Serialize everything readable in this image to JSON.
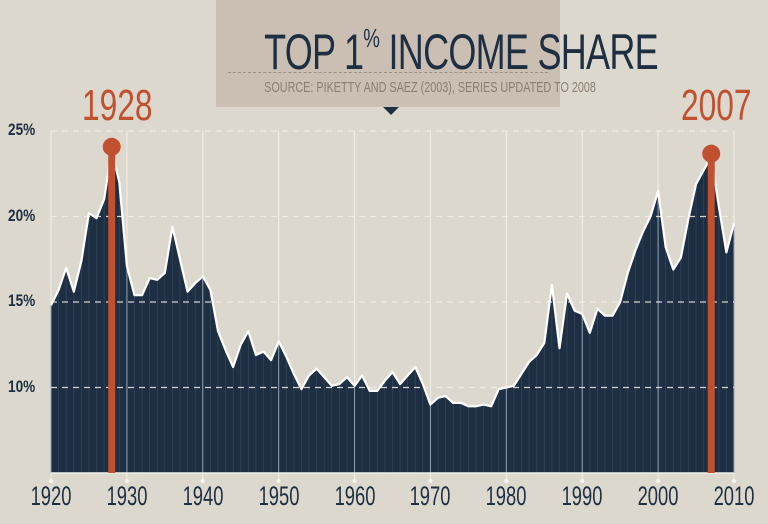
{
  "header": {
    "title_main": "TOP 1",
    "title_sup": "%",
    "title_rest": " INCOME SHARE",
    "source": "SOURCE: PIKETTY AND SAEZ (2003), SERIES UPDATED TO 2008"
  },
  "highlights": [
    {
      "label": "1928",
      "year": 1928,
      "value": 23.9
    },
    {
      "label": "2007",
      "year": 2007,
      "value": 23.5
    }
  ],
  "y_ticks": [
    "25%",
    "20%",
    "15%",
    "10%"
  ],
  "x_ticks": [
    "1920",
    "1930",
    "1940",
    "1950",
    "1960",
    "1970",
    "1980",
    "1990",
    "2000",
    "2010"
  ],
  "colors": {
    "background": "#dcd8cd",
    "title_box": "#cbbfb3",
    "area_fill": "#1e2f43",
    "line": "#ffffff",
    "highlight": "#c0502e",
    "text": "#1e2f43"
  },
  "chart_data": {
    "type": "area",
    "title": "TOP 1% INCOME SHARE",
    "subtitle": "SOURCE: PIKETTY AND SAEZ (2003), SERIES UPDATED TO 2008",
    "xlabel": "",
    "ylabel": "",
    "xlim": [
      1920,
      2010
    ],
    "ylim": [
      5,
      25
    ],
    "y_ticks": [
      10,
      15,
      20,
      25
    ],
    "x_ticks": [
      1920,
      1930,
      1940,
      1950,
      1960,
      1970,
      1980,
      1990,
      2000,
      2010
    ],
    "grid": "dashed horizontal at 10/15/20/25, vertical lines at decades",
    "annotations": [
      {
        "year": 1928,
        "text": "1928",
        "value": 23.9
      },
      {
        "year": 2007,
        "text": "2007",
        "value": 23.5
      }
    ],
    "series": [
      {
        "name": "Top 1% income share (%)",
        "x": [
          1920,
          1921,
          1922,
          1923,
          1924,
          1925,
          1926,
          1927,
          1928,
          1929,
          1930,
          1931,
          1932,
          1933,
          1934,
          1935,
          1936,
          1937,
          1938,
          1939,
          1940,
          1941,
          1942,
          1943,
          1944,
          1945,
          1946,
          1947,
          1948,
          1949,
          1950,
          1951,
          1952,
          1953,
          1954,
          1955,
          1956,
          1957,
          1958,
          1959,
          1960,
          1961,
          1962,
          1963,
          1964,
          1965,
          1966,
          1967,
          1968,
          1969,
          1970,
          1971,
          1972,
          1973,
          1974,
          1975,
          1976,
          1977,
          1978,
          1979,
          1980,
          1981,
          1982,
          1983,
          1984,
          1985,
          1986,
          1987,
          1988,
          1989,
          1990,
          1991,
          1992,
          1993,
          1994,
          1995,
          1996,
          1997,
          1998,
          1999,
          2000,
          2001,
          2002,
          2003,
          2004,
          2005,
          2006,
          2007,
          2008,
          2009,
          2010
        ],
        "values": [
          14.8,
          15.7,
          17.0,
          15.6,
          17.4,
          20.2,
          19.9,
          21.0,
          23.9,
          22.0,
          17.1,
          15.4,
          15.4,
          16.4,
          16.3,
          16.7,
          19.4,
          17.5,
          15.6,
          16.1,
          16.5,
          15.7,
          13.3,
          12.2,
          11.2,
          12.5,
          13.3,
          11.9,
          12.1,
          11.6,
          12.7,
          11.8,
          10.8,
          9.9,
          10.7,
          11.1,
          10.6,
          10.1,
          10.2,
          10.6,
          10.1,
          10.7,
          9.8,
          9.8,
          10.4,
          10.9,
          10.2,
          10.7,
          11.2,
          10.2,
          9.0,
          9.4,
          9.5,
          9.1,
          9.1,
          8.9,
          8.9,
          9.0,
          8.9,
          9.9,
          10.0,
          10.1,
          10.8,
          11.5,
          11.9,
          12.6,
          16.0,
          12.3,
          15.5,
          14.5,
          14.3,
          13.2,
          14.6,
          14.2,
          14.2,
          15.0,
          16.7,
          18.0,
          19.1,
          20.0,
          21.5,
          18.2,
          16.9,
          17.6,
          19.9,
          21.9,
          22.7,
          23.5,
          20.6,
          17.9,
          19.6
        ]
      }
    ]
  }
}
